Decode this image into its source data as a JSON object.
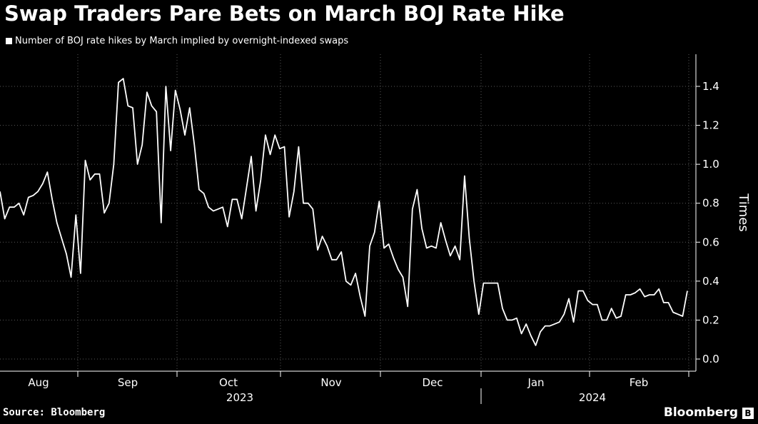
{
  "chart_data": {
    "type": "line",
    "title": "Swap Traders Pare Bets on March BOJ Rate Hike",
    "legend": "Number of BOJ rate hikes by March implied by overnight-indexed swaps",
    "ylabel": "Times",
    "xlabel": "",
    "ylim": [
      -0.05,
      1.55
    ],
    "yticks": [
      0.0,
      0.2,
      0.4,
      0.6,
      0.8,
      1.0,
      1.2,
      1.4
    ],
    "ytick_labels": [
      "0.0",
      "0.2",
      "0.4",
      "0.6",
      "0.8",
      "1.0",
      "1.2",
      "1.4"
    ],
    "x_month_labels": [
      "Aug",
      "Sep",
      "Oct",
      "Nov",
      "Dec",
      "Jan",
      "Feb"
    ],
    "x_year_labels": [
      "2023",
      "2024"
    ],
    "grid": true,
    "series": [
      {
        "name": "Number of BOJ rate hikes by March implied by overnight-indexed swaps",
        "color": "#ffffff",
        "values": [
          0.86,
          0.72,
          0.78,
          0.78,
          0.8,
          0.74,
          0.83,
          0.84,
          0.86,
          0.9,
          0.96,
          0.82,
          0.7,
          0.62,
          0.54,
          0.42,
          0.74,
          0.44,
          1.02,
          0.92,
          0.95,
          0.95,
          0.75,
          0.8,
          1.0,
          1.42,
          1.44,
          1.3,
          1.29,
          1.0,
          1.1,
          1.37,
          1.3,
          1.27,
          0.7,
          1.4,
          1.07,
          1.38,
          1.28,
          1.15,
          1.29,
          1.1,
          0.87,
          0.85,
          0.78,
          0.76,
          0.77,
          0.78,
          0.68,
          0.82,
          0.82,
          0.72,
          0.88,
          1.04,
          0.76,
          0.92,
          1.15,
          1.05,
          1.15,
          1.08,
          1.09,
          0.73,
          0.86,
          1.09,
          0.8,
          0.8,
          0.77,
          0.56,
          0.63,
          0.58,
          0.51,
          0.51,
          0.55,
          0.4,
          0.38,
          0.44,
          0.32,
          0.22,
          0.58,
          0.65,
          0.81,
          0.57,
          0.59,
          0.52,
          0.46,
          0.42,
          0.27,
          0.77,
          0.87,
          0.67,
          0.57,
          0.58,
          0.57,
          0.7,
          0.61,
          0.53,
          0.58,
          0.51,
          0.94,
          0.62,
          0.4,
          0.23,
          0.39,
          0.39,
          0.39,
          0.39,
          0.26,
          0.2,
          0.2,
          0.21,
          0.13,
          0.18,
          0.12,
          0.07,
          0.14,
          0.17,
          0.17,
          0.18,
          0.19,
          0.23,
          0.31,
          0.19,
          0.35,
          0.35,
          0.3,
          0.28,
          0.28,
          0.2,
          0.2,
          0.26,
          0.21,
          0.22,
          0.33,
          0.33,
          0.34,
          0.36,
          0.32,
          0.33,
          0.33,
          0.36,
          0.29,
          0.29,
          0.24,
          0.23,
          0.22,
          0.35
        ]
      }
    ]
  },
  "source_label": "Source: Bloomberg",
  "brand_label": "Bloomberg",
  "brand_mark": "B"
}
